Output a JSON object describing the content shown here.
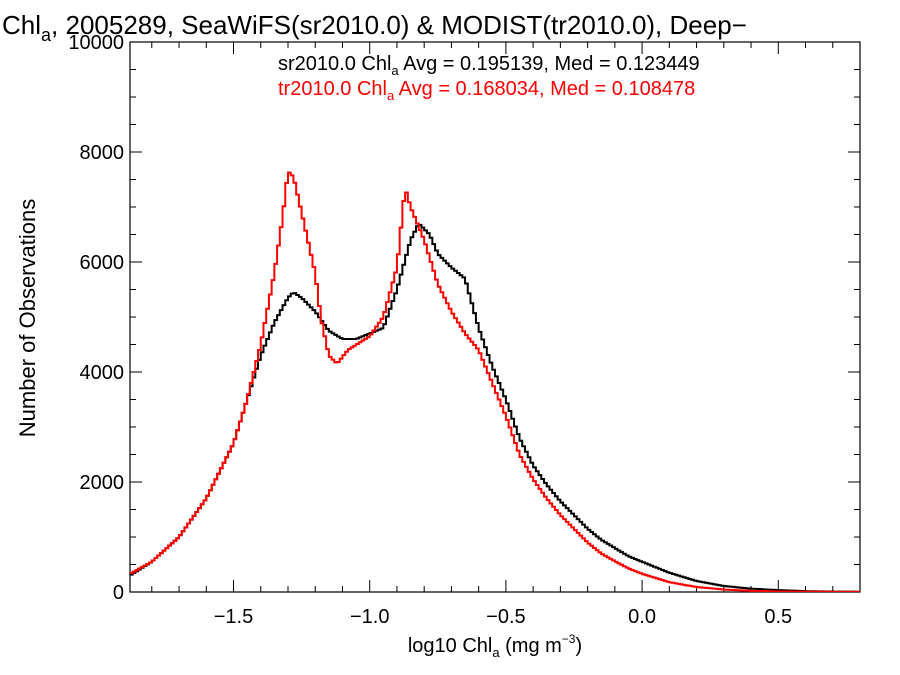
{
  "chart_data": {
    "type": "line",
    "title": {
      "pre": "Chl",
      "sub": "a",
      "post": ", 2005289, SeaWiFS(sr2010.0) & MODIST(tr2010.0), Deep−"
    },
    "xlabel": {
      "pre": "log10 Chl",
      "sub": "a",
      "mid": " (mg m",
      "sup": "−3",
      "post": ")"
    },
    "ylabel": "Number of Observations",
    "xlim": [
      -1.88,
      0.8
    ],
    "ylim": [
      0,
      10000
    ],
    "xticks": [
      -1.5,
      -1.0,
      -0.5,
      0.0,
      0.5
    ],
    "xtick_labels": [
      "−1.5",
      "−1.0",
      "−0.5",
      "0.0",
      "0.5"
    ],
    "xminor_step": 0.1,
    "yticks": [
      0,
      2000,
      4000,
      6000,
      8000,
      10000
    ],
    "ytick_labels": [
      "0",
      "2000",
      "4000",
      "6000",
      "8000",
      "10000"
    ],
    "yminor_step": 500,
    "grid": false,
    "legend_placement": "top-right",
    "series": [
      {
        "name": "sr2010.0",
        "color": "#000000",
        "annotation": {
          "pre": "sr2010.0 Chl",
          "sub": "a",
          "post": " Avg = 0.195139, Med = 0.123449"
        },
        "points": [
          [
            -1.88,
            300
          ],
          [
            -1.8,
            550
          ],
          [
            -1.7,
            1000
          ],
          [
            -1.6,
            1700
          ],
          [
            -1.5,
            2700
          ],
          [
            -1.45,
            3500
          ],
          [
            -1.4,
            4300
          ],
          [
            -1.35,
            4900
          ],
          [
            -1.3,
            5350
          ],
          [
            -1.28,
            5450
          ],
          [
            -1.25,
            5350
          ],
          [
            -1.2,
            5100
          ],
          [
            -1.15,
            4750
          ],
          [
            -1.1,
            4600
          ],
          [
            -1.05,
            4600
          ],
          [
            -1.0,
            4700
          ],
          [
            -0.95,
            4800
          ],
          [
            -0.9,
            5500
          ],
          [
            -0.85,
            6400
          ],
          [
            -0.82,
            6700
          ],
          [
            -0.78,
            6500
          ],
          [
            -0.75,
            6150
          ],
          [
            -0.7,
            5900
          ],
          [
            -0.65,
            5700
          ],
          [
            -0.6,
            4800
          ],
          [
            -0.55,
            4100
          ],
          [
            -0.5,
            3500
          ],
          [
            -0.45,
            2800
          ],
          [
            -0.4,
            2300
          ],
          [
            -0.35,
            1950
          ],
          [
            -0.3,
            1650
          ],
          [
            -0.25,
            1400
          ],
          [
            -0.2,
            1150
          ],
          [
            -0.15,
            950
          ],
          [
            -0.1,
            800
          ],
          [
            -0.05,
            650
          ],
          [
            0.0,
            550
          ],
          [
            0.1,
            350
          ],
          [
            0.2,
            200
          ],
          [
            0.3,
            110
          ],
          [
            0.4,
            60
          ],
          [
            0.5,
            35
          ],
          [
            0.6,
            15
          ],
          [
            0.7,
            8
          ],
          [
            0.8,
            5
          ]
        ]
      },
      {
        "name": "tr2010.0",
        "color": "#ff0000",
        "annotation": {
          "pre": "tr2010.0 Chl",
          "sub": "a",
          "post": " Avg = 0.168034, Med = 0.108478"
        },
        "points": [
          [
            -1.88,
            330
          ],
          [
            -1.8,
            550
          ],
          [
            -1.7,
            1000
          ],
          [
            -1.6,
            1700
          ],
          [
            -1.5,
            2700
          ],
          [
            -1.45,
            3500
          ],
          [
            -1.4,
            4500
          ],
          [
            -1.35,
            5800
          ],
          [
            -1.32,
            6800
          ],
          [
            -1.3,
            7650
          ],
          [
            -1.28,
            7550
          ],
          [
            -1.25,
            6900
          ],
          [
            -1.2,
            5800
          ],
          [
            -1.18,
            5000
          ],
          [
            -1.15,
            4300
          ],
          [
            -1.12,
            4150
          ],
          [
            -1.08,
            4400
          ],
          [
            -1.0,
            4650
          ],
          [
            -0.95,
            5000
          ],
          [
            -0.9,
            5900
          ],
          [
            -0.87,
            7350
          ],
          [
            -0.85,
            7000
          ],
          [
            -0.8,
            6400
          ],
          [
            -0.75,
            5600
          ],
          [
            -0.7,
            5100
          ],
          [
            -0.65,
            4700
          ],
          [
            -0.6,
            4400
          ],
          [
            -0.55,
            3800
          ],
          [
            -0.5,
            3200
          ],
          [
            -0.45,
            2500
          ],
          [
            -0.4,
            2050
          ],
          [
            -0.35,
            1700
          ],
          [
            -0.3,
            1400
          ],
          [
            -0.25,
            1150
          ],
          [
            -0.2,
            900
          ],
          [
            -0.15,
            700
          ],
          [
            -0.1,
            560
          ],
          [
            -0.05,
            430
          ],
          [
            0.0,
            330
          ],
          [
            0.1,
            180
          ],
          [
            0.2,
            90
          ],
          [
            0.3,
            45
          ],
          [
            0.4,
            22
          ],
          [
            0.5,
            10
          ],
          [
            0.6,
            5
          ],
          [
            0.7,
            3
          ],
          [
            0.8,
            2
          ]
        ]
      }
    ]
  }
}
